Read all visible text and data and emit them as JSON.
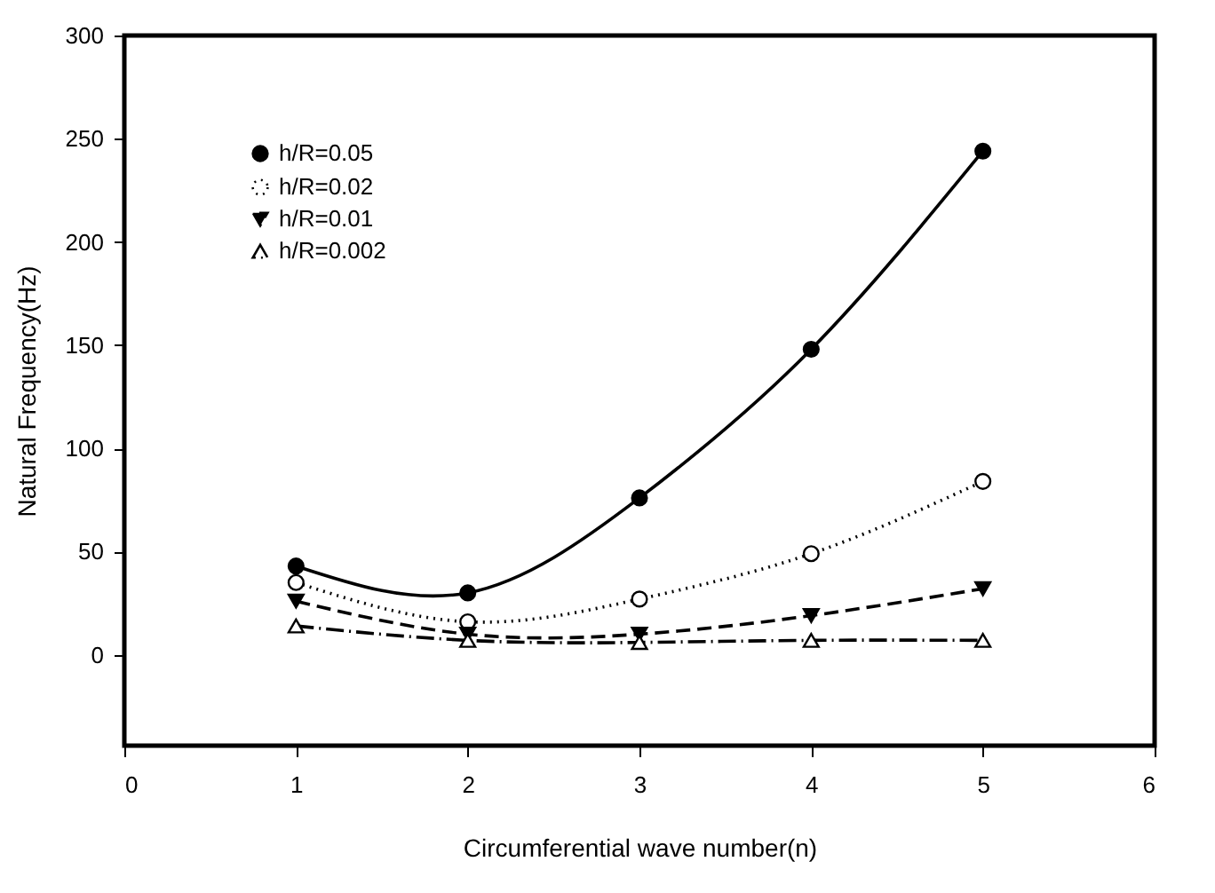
{
  "chart_data": {
    "type": "line",
    "xlabel": "Circumferential wave number(n)",
    "ylabel": "Natural Frequency(Hz)",
    "x": [
      1,
      2,
      3,
      4,
      5
    ],
    "xlim": [
      0,
      6
    ],
    "xticks": [
      0,
      1,
      2,
      3,
      4,
      5,
      6
    ],
    "ylim": [
      -44,
      300
    ],
    "yticks": [
      0,
      50,
      100,
      150,
      200,
      250,
      300
    ],
    "legend": "top left",
    "series": [
      {
        "name": "h/R=0.05",
        "color": "#000000",
        "marker": "circle",
        "line_style": "solid",
        "values": [
          43,
          30,
          76,
          148,
          244
        ]
      },
      {
        "name": "h/R=0.02",
        "color": "#000000",
        "marker": "circle-open",
        "line_style": "dotted",
        "values": [
          35,
          16,
          27,
          49,
          84
        ]
      },
      {
        "name": "h/R=0.01",
        "color": "#000000",
        "marker": "triangle-down",
        "line_style": "dashed",
        "values": [
          26,
          10,
          10,
          19,
          32
        ]
      },
      {
        "name": "h/R=0.002",
        "color": "#000000",
        "marker": "triangle-open",
        "line_style": "dashdot",
        "values": [
          14,
          7,
          6,
          7,
          7
        ]
      }
    ]
  }
}
